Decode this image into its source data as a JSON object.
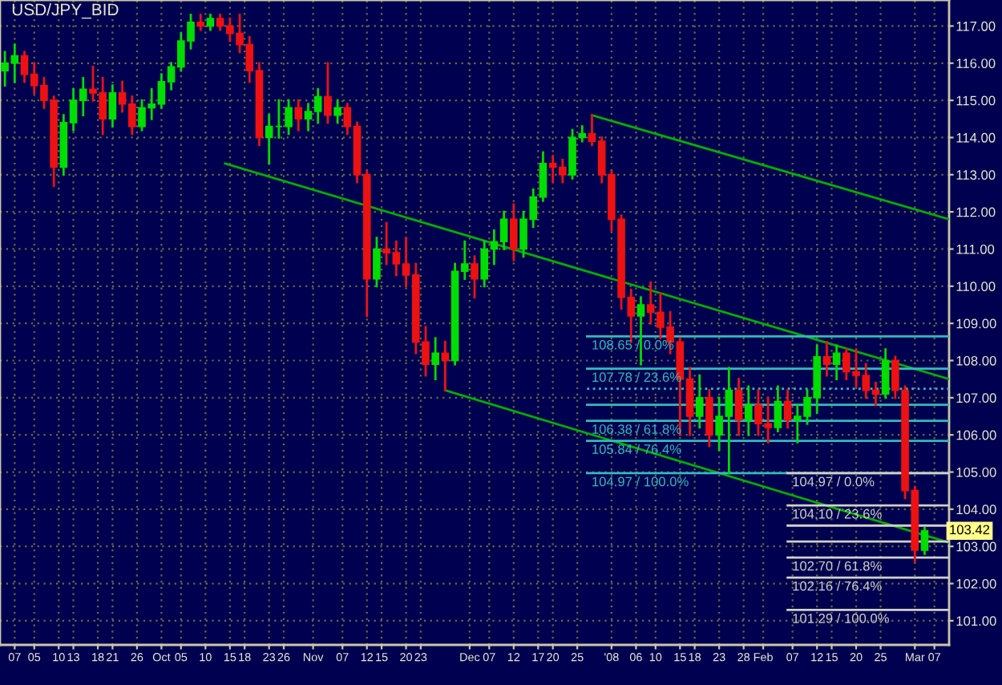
{
  "chart_data": {
    "type": "candlestick",
    "title": "USD/JPY_BID",
    "xlim": [
      "2007-08-29",
      "2008-03-10"
    ],
    "ylim": [
      100.35,
      117.7
    ],
    "grid": true,
    "xticks": [
      {
        "value": "2007-09-01",
        "label": "07"
      },
      {
        "value": "2007-09-05",
        "label": "05"
      },
      {
        "value": "2007-09-10",
        "label": "10"
      },
      {
        "value": "2007-09-13",
        "label": "13"
      },
      {
        "value": "2007-09-18",
        "label": "18"
      },
      {
        "value": "2007-09-21",
        "label": "21"
      },
      {
        "value": "2007-09-26",
        "label": "26"
      },
      {
        "value": "2007-10-01",
        "label": "Oct"
      },
      {
        "value": "2007-10-05",
        "label": "05"
      },
      {
        "value": "2007-10-10",
        "label": "10"
      },
      {
        "value": "2007-10-15",
        "label": "15"
      },
      {
        "value": "2007-10-18",
        "label": "18"
      },
      {
        "value": "2007-10-23",
        "label": "23"
      },
      {
        "value": "2007-10-26",
        "label": "26"
      },
      {
        "value": "2007-11-01",
        "label": "Nov"
      },
      {
        "value": "2007-11-07",
        "label": "07"
      },
      {
        "value": "2007-11-12",
        "label": "12"
      },
      {
        "value": "2007-11-15",
        "label": "15"
      },
      {
        "value": "2007-11-20",
        "label": "20"
      },
      {
        "value": "2007-11-23",
        "label": "23"
      },
      {
        "value": "2007-12-03",
        "label": "Dec"
      },
      {
        "value": "2007-12-07",
        "label": "07"
      },
      {
        "value": "2007-12-12",
        "label": "12"
      },
      {
        "value": "2007-12-17",
        "label": "17"
      },
      {
        "value": "2007-12-20",
        "label": "20"
      },
      {
        "value": "2007-12-25",
        "label": "25"
      },
      {
        "value": "2008-01-01",
        "label": "'08"
      },
      {
        "value": "2008-01-06",
        "label": "06"
      },
      {
        "value": "2008-01-10",
        "label": "10"
      },
      {
        "value": "2008-01-15",
        "label": "15"
      },
      {
        "value": "2008-01-18",
        "label": "18"
      },
      {
        "value": "2008-01-23",
        "label": "23"
      },
      {
        "value": "2008-01-28",
        "label": "28"
      },
      {
        "value": "2008-02-01",
        "label": "Feb"
      },
      {
        "value": "2008-02-07",
        "label": "07"
      },
      {
        "value": "2008-02-12",
        "label": "12"
      },
      {
        "value": "2008-02-15",
        "label": "15"
      },
      {
        "value": "2008-02-20",
        "label": "20"
      },
      {
        "value": "2008-02-25",
        "label": "25"
      },
      {
        "value": "2008-03-03",
        "label": "Mar"
      },
      {
        "value": "2008-03-07",
        "label": "07"
      }
    ],
    "yticks": [
      {
        "value": 101,
        "label": "101.00"
      },
      {
        "value": 102,
        "label": "102.00"
      },
      {
        "value": 103,
        "label": "103.00"
      },
      {
        "value": 104,
        "label": "104.00"
      },
      {
        "value": 105,
        "label": "105.00"
      },
      {
        "value": 106,
        "label": "106.00"
      },
      {
        "value": 107,
        "label": "107.00"
      },
      {
        "value": 108,
        "label": "108.00"
      },
      {
        "value": 109,
        "label": "109.00"
      },
      {
        "value": 110,
        "label": "110.00"
      },
      {
        "value": 111,
        "label": "111.00"
      },
      {
        "value": 112,
        "label": "112.00"
      },
      {
        "value": 113,
        "label": "113.00"
      },
      {
        "value": 114,
        "label": "114.00"
      },
      {
        "value": 115,
        "label": "115.00"
      },
      {
        "value": 116,
        "label": "116.00"
      },
      {
        "value": 117,
        "label": "117.00"
      }
    ],
    "annotations": [
      {
        "text": "103.42",
        "x": "2008-03-05",
        "y": 103.42
      }
    ],
    "series": [
      {
        "x": [
          "2007-08-30",
          "2007-09-01",
          "2007-09-03",
          "2007-09-05",
          "2007-09-07",
          "2007-09-09",
          "2007-09-11",
          "2007-09-13",
          "2007-09-15",
          "2007-09-17",
          "2007-09-19",
          "2007-09-21",
          "2007-09-23",
          "2007-09-25",
          "2007-09-27",
          "2007-09-29",
          "2007-10-01",
          "2007-10-03",
          "2007-10-05",
          "2007-10-07",
          "2007-10-09",
          "2007-10-11",
          "2007-10-13",
          "2007-10-15",
          "2007-10-17",
          "2007-10-19",
          "2007-10-21",
          "2007-10-23",
          "2007-10-25",
          "2007-10-27",
          "2007-10-29",
          "2007-10-31",
          "2007-11-02",
          "2007-11-04",
          "2007-11-06",
          "2007-11-08",
          "2007-11-10",
          "2007-11-12",
          "2007-11-14",
          "2007-11-16",
          "2007-11-18",
          "2007-11-20",
          "2007-11-22",
          "2007-11-24",
          "2007-11-26",
          "2007-11-28",
          "2007-11-30",
          "2007-12-02",
          "2007-12-04",
          "2007-12-06",
          "2007-12-08",
          "2007-12-10",
          "2007-12-12",
          "2007-12-14",
          "2007-12-16",
          "2007-12-18",
          "2007-12-20",
          "2007-12-22",
          "2007-12-24",
          "2007-12-26",
          "2007-12-28",
          "2007-12-30",
          "2008-01-01",
          "2008-01-03",
          "2008-01-05",
          "2008-01-07",
          "2008-01-09",
          "2008-01-11",
          "2008-01-13",
          "2008-01-15",
          "2008-01-17",
          "2008-01-19",
          "2008-01-21",
          "2008-01-23",
          "2008-01-25",
          "2008-01-27",
          "2008-01-29",
          "2008-01-31",
          "2008-02-02",
          "2008-02-04",
          "2008-02-06",
          "2008-02-08",
          "2008-02-10",
          "2008-02-12",
          "2008-02-14",
          "2008-02-16",
          "2008-02-18",
          "2008-02-20",
          "2008-02-22",
          "2008-02-24",
          "2008-02-26",
          "2008-02-28",
          "2008-03-01",
          "2008-03-03",
          "2008-03-05"
        ],
        "ohlc": [
          [
            115.8,
            116.3,
            115.4,
            116.0
          ],
          [
            116.0,
            116.5,
            115.5,
            116.2
          ],
          [
            116.2,
            116.3,
            115.5,
            115.7
          ],
          [
            115.7,
            116.0,
            115.2,
            115.4
          ],
          [
            115.4,
            115.6,
            114.8,
            115.0
          ],
          [
            115.0,
            115.1,
            112.7,
            113.2
          ],
          [
            113.2,
            114.6,
            113.0,
            114.4
          ],
          [
            114.4,
            115.3,
            114.2,
            115.0
          ],
          [
            115.0,
            115.6,
            114.6,
            115.3
          ],
          [
            115.3,
            115.9,
            115.0,
            115.2
          ],
          [
            115.2,
            115.6,
            114.1,
            114.5
          ],
          [
            114.5,
            115.4,
            114.3,
            115.2
          ],
          [
            115.2,
            115.5,
            114.7,
            114.9
          ],
          [
            114.9,
            115.1,
            114.1,
            114.3
          ],
          [
            114.3,
            115.0,
            114.2,
            114.8
          ],
          [
            114.8,
            115.3,
            114.5,
            114.9
          ],
          [
            114.9,
            115.7,
            114.8,
            115.5
          ],
          [
            115.5,
            116.0,
            115.3,
            115.9
          ],
          [
            115.9,
            116.8,
            115.8,
            116.6
          ],
          [
            116.6,
            117.3,
            116.4,
            117.1
          ],
          [
            117.1,
            117.3,
            116.9,
            117.0
          ],
          [
            117.0,
            117.3,
            116.9,
            117.2
          ],
          [
            117.2,
            117.3,
            116.9,
            117.0
          ],
          [
            117.0,
            117.2,
            116.6,
            116.8
          ],
          [
            116.8,
            117.3,
            116.3,
            116.5
          ],
          [
            116.5,
            116.7,
            115.5,
            115.8
          ],
          [
            115.8,
            116.0,
            113.8,
            114.0
          ],
          [
            114.0,
            114.6,
            113.3,
            114.3
          ],
          [
            114.3,
            115.0,
            114.0,
            114.3
          ],
          [
            114.3,
            115.0,
            114.1,
            114.8
          ],
          [
            114.8,
            115.0,
            114.2,
            114.5
          ],
          [
            114.5,
            114.9,
            114.2,
            114.7
          ],
          [
            114.7,
            115.3,
            114.4,
            115.1
          ],
          [
            115.1,
            116.0,
            114.4,
            114.6
          ],
          [
            114.6,
            115.0,
            114.4,
            114.8
          ],
          [
            114.8,
            114.9,
            114.1,
            114.3
          ],
          [
            114.3,
            114.4,
            112.8,
            113.0
          ],
          [
            113.0,
            113.1,
            109.2,
            110.2
          ],
          [
            110.2,
            111.3,
            110.0,
            111.0
          ],
          [
            111.0,
            111.7,
            110.6,
            110.9
          ],
          [
            110.9,
            111.2,
            110.3,
            110.6
          ],
          [
            110.6,
            111.3,
            110.0,
            110.3
          ],
          [
            110.3,
            110.6,
            108.2,
            108.5
          ],
          [
            108.5,
            108.9,
            107.6,
            107.9
          ],
          [
            107.9,
            108.6,
            107.5,
            108.2
          ],
          [
            108.2,
            108.5,
            107.2,
            108.0
          ],
          [
            108.0,
            110.6,
            107.9,
            110.4
          ],
          [
            110.4,
            111.2,
            110.2,
            110.6
          ],
          [
            110.6,
            110.8,
            109.7,
            110.2
          ],
          [
            110.2,
            111.2,
            110.0,
            111.0
          ],
          [
            111.0,
            111.5,
            110.6,
            111.2
          ],
          [
            111.2,
            112.0,
            111.0,
            111.8
          ],
          [
            111.8,
            112.2,
            110.7,
            111.0
          ],
          [
            111.0,
            112.0,
            110.8,
            111.8
          ],
          [
            111.8,
            112.6,
            111.6,
            112.4
          ],
          [
            112.4,
            113.6,
            112.3,
            113.3
          ],
          [
            113.3,
            113.5,
            112.8,
            113.2
          ],
          [
            113.2,
            113.4,
            112.8,
            113.0
          ],
          [
            113.0,
            114.2,
            112.9,
            114.0
          ],
          [
            114.0,
            114.3,
            113.9,
            114.1
          ],
          [
            114.1,
            114.6,
            113.8,
            113.9
          ],
          [
            113.9,
            114.0,
            112.8,
            113.0
          ],
          [
            113.0,
            113.1,
            111.5,
            111.8
          ],
          [
            111.8,
            111.9,
            109.4,
            109.7
          ],
          [
            109.7,
            109.9,
            108.5,
            109.2
          ],
          [
            109.2,
            109.7,
            107.9,
            109.5
          ],
          [
            109.5,
            110.1,
            109.0,
            109.3
          ],
          [
            109.3,
            109.8,
            108.6,
            108.9
          ],
          [
            108.9,
            109.3,
            108.2,
            108.5
          ],
          [
            108.5,
            108.6,
            106.0,
            107.5
          ],
          [
            107.5,
            107.8,
            106.0,
            106.5
          ],
          [
            106.5,
            107.6,
            106.2,
            107.0
          ],
          [
            107.0,
            107.2,
            105.7,
            106.0
          ],
          [
            106.0,
            107.0,
            105.6,
            106.5
          ],
          [
            106.5,
            107.8,
            104.97,
            107.2
          ],
          [
            107.2,
            107.5,
            106.0,
            106.4
          ],
          [
            106.4,
            107.3,
            106.0,
            106.8
          ],
          [
            106.8,
            107.2,
            106.0,
            106.3
          ],
          [
            106.3,
            107.0,
            105.8,
            106.2
          ],
          [
            106.2,
            107.3,
            106.1,
            106.9
          ],
          [
            106.9,
            107.2,
            106.2,
            106.4
          ],
          [
            106.4,
            106.8,
            105.8,
            106.5
          ],
          [
            106.5,
            107.2,
            106.3,
            107.0
          ],
          [
            107.0,
            108.4,
            106.6,
            108.1
          ],
          [
            108.1,
            108.5,
            107.6,
            107.9
          ],
          [
            107.9,
            108.4,
            107.5,
            108.2
          ],
          [
            108.2,
            108.3,
            107.5,
            107.7
          ],
          [
            107.7,
            108.3,
            107.3,
            107.6
          ],
          [
            107.6,
            107.9,
            107.0,
            107.2
          ],
          [
            107.2,
            107.4,
            106.8,
            107.1
          ],
          [
            107.1,
            108.3,
            107.0,
            108.0
          ],
          [
            108.0,
            108.1,
            107.0,
            107.2
          ],
          [
            107.2,
            107.3,
            104.3,
            104.5
          ],
          [
            104.5,
            104.6,
            102.6,
            102.9
          ],
          [
            102.9,
            103.5,
            102.8,
            103.42
          ]
        ],
        "colors": [
          "#00dd00",
          "#00dd00",
          "#ee1111",
          "#ee1111",
          "#ee1111",
          "#ee1111",
          "#00dd00",
          "#00dd00",
          "#00dd00",
          "#ee1111",
          "#ee1111",
          "#00dd00",
          "#ee1111",
          "#ee1111",
          "#00dd00",
          "#00dd00",
          "#00dd00",
          "#00dd00",
          "#00dd00",
          "#00dd00",
          "#ee1111",
          "#00dd00",
          "#ee1111",
          "#ee1111",
          "#ee1111",
          "#ee1111",
          "#ee1111",
          "#00dd00",
          "#00dd00",
          "#00dd00",
          "#ee1111",
          "#00dd00",
          "#00dd00",
          "#ee1111",
          "#00dd00",
          "#ee1111",
          "#ee1111",
          "#ee1111",
          "#00dd00",
          "#ee1111",
          "#ee1111",
          "#ee1111",
          "#ee1111",
          "#ee1111",
          "#00dd00",
          "#ee1111",
          "#00dd00",
          "#00dd00",
          "#ee1111",
          "#00dd00",
          "#00dd00",
          "#00dd00",
          "#ee1111",
          "#00dd00",
          "#00dd00",
          "#00dd00",
          "#ee1111",
          "#ee1111",
          "#00dd00",
          "#00dd00",
          "#ee1111",
          "#ee1111",
          "#ee1111",
          "#ee1111",
          "#ee1111",
          "#00dd00",
          "#ee1111",
          "#ee1111",
          "#ee1111",
          "#ee1111",
          "#ee1111",
          "#00dd00",
          "#ee1111",
          "#00dd00",
          "#00dd00",
          "#ee1111",
          "#00dd00",
          "#ee1111",
          "#ee1111",
          "#00dd00",
          "#ee1111",
          "#00dd00",
          "#00dd00",
          "#00dd00",
          "#ee1111",
          "#00dd00",
          "#ee1111",
          "#ee1111",
          "#ee1111",
          "#ee1111",
          "#00dd00",
          "#ee1111",
          "#ee1111",
          "#ee1111",
          "#00dd00"
        ]
      },
      {
        "type": "line",
        "x": [
          "2007-12-28",
          "2008-03-10"
        ],
        "values": [
          114.6,
          111.8
        ],
        "color": "#00b000"
      },
      {
        "type": "line",
        "x": [
          "2007-10-14",
          "2008-03-10"
        ],
        "values": [
          113.3,
          107.5
        ],
        "color": "#00b000"
      },
      {
        "type": "line",
        "x": [
          "2007-11-28",
          "2008-03-10"
        ],
        "values": [
          107.2,
          103.1
        ],
        "color": "#00b000"
      },
      {
        "type": "line",
        "name": "108.65 / 0.0%",
        "x": [
          "2007-12-27",
          "2008-03-10"
        ],
        "values": [
          108.65,
          108.65
        ],
        "color": "#33bbbb"
      },
      {
        "type": "line",
        "name": "107.78 / 23.6%",
        "x": [
          "2007-12-27",
          "2008-03-10"
        ],
        "values": [
          107.78,
          107.78
        ],
        "color": "#33bbbb"
      },
      {
        "type": "line",
        "x": [
          "2007-12-27",
          "2008-03-10"
        ],
        "values": [
          107.24,
          107.24
        ],
        "color": "#33bbbb",
        "line_style": "dotted"
      },
      {
        "type": "line",
        "x": [
          "2007-12-27",
          "2008-03-10"
        ],
        "values": [
          106.81,
          106.81
        ],
        "color": "#33bbbb"
      },
      {
        "type": "line",
        "name": "106.38 / 61.8%",
        "x": [
          "2007-12-27",
          "2008-03-10"
        ],
        "values": [
          106.38,
          106.38
        ],
        "color": "#33bbbb"
      },
      {
        "type": "line",
        "name": "105.84 / 76.4%",
        "x": [
          "2007-12-27",
          "2008-03-10"
        ],
        "values": [
          105.84,
          105.84
        ],
        "color": "#33bbbb"
      },
      {
        "type": "line",
        "name": "104.97 / 100.0%",
        "x": [
          "2007-12-27",
          "2008-03-10"
        ],
        "values": [
          104.97,
          104.97
        ],
        "color": "#33bbbb"
      },
      {
        "type": "line",
        "name": "104.97 / 0.0%",
        "x": [
          "2008-02-06",
          "2008-03-10"
        ],
        "values": [
          104.97,
          104.97
        ],
        "color": "#d0d0c8"
      },
      {
        "type": "line",
        "name": "104.10 / 23.6%",
        "x": [
          "2008-02-06",
          "2008-03-10"
        ],
        "values": [
          104.1,
          104.1
        ],
        "color": "#d0d0c8"
      },
      {
        "type": "line",
        "x": [
          "2008-02-06",
          "2008-03-10"
        ],
        "values": [
          103.56,
          103.56
        ],
        "color": "#d0d0c8"
      },
      {
        "type": "line",
        "x": [
          "2008-02-06",
          "2008-03-10"
        ],
        "values": [
          103.13,
          103.13
        ],
        "color": "#d0d0c8"
      },
      {
        "type": "line",
        "name": "102.70 / 61.8%",
        "x": [
          "2008-02-06",
          "2008-03-10"
        ],
        "values": [
          102.7,
          102.7
        ],
        "color": "#d0d0c8"
      },
      {
        "type": "line",
        "name": "102.16 / 76.4%",
        "x": [
          "2008-02-06",
          "2008-03-10"
        ],
        "values": [
          102.16,
          102.16
        ],
        "color": "#d0d0c8"
      },
      {
        "type": "line",
        "name": "101.29 / 100.0%",
        "x": [
          "2008-02-06",
          "2008-03-10"
        ],
        "values": [
          101.29,
          101.29
        ],
        "color": "#d0d0c8"
      }
    ]
  }
}
